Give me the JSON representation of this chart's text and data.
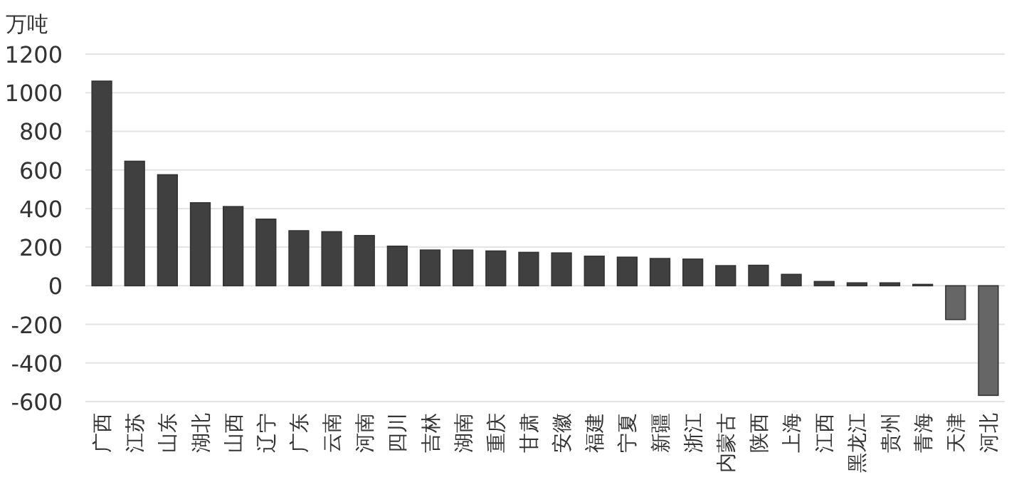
{
  "chart_data": {
    "type": "bar",
    "ylabel": "万吨",
    "categories": [
      "广西",
      "江苏",
      "山东",
      "湖北",
      "山西",
      "辽宁",
      "广东",
      "云南",
      "河南",
      "四川",
      "吉林",
      "湖南",
      "重庆",
      "甘肃",
      "安徽",
      "福建",
      "宁夏",
      "新疆",
      "浙江",
      "内蒙古",
      "陕西",
      "上海",
      "江西",
      "黑龙江",
      "贵州",
      "青海",
      "天津",
      "河北"
    ],
    "values": [
      1060,
      645,
      575,
      430,
      410,
      345,
      285,
      280,
      260,
      205,
      185,
      185,
      180,
      173,
      170,
      153,
      148,
      141,
      138,
      104,
      106,
      59,
      22,
      15,
      15,
      7,
      -175,
      -568
    ],
    "colors": [
      "#404040",
      "#404040",
      "#404040",
      "#404040",
      "#404040",
      "#404040",
      "#404040",
      "#404040",
      "#404040",
      "#404040",
      "#404040",
      "#404040",
      "#404040",
      "#404040",
      "#404040",
      "#404040",
      "#404040",
      "#404040",
      "#404040",
      "#404040",
      "#404040",
      "#404040",
      "#404040",
      "#404040",
      "#404040",
      "#404040",
      "#666666",
      "#666666"
    ],
    "ylim": [
      -600,
      1200
    ],
    "yticks": [
      -600,
      -400,
      -200,
      0,
      200,
      400,
      600,
      800,
      1000,
      1200
    ],
    "grid": "y"
  }
}
